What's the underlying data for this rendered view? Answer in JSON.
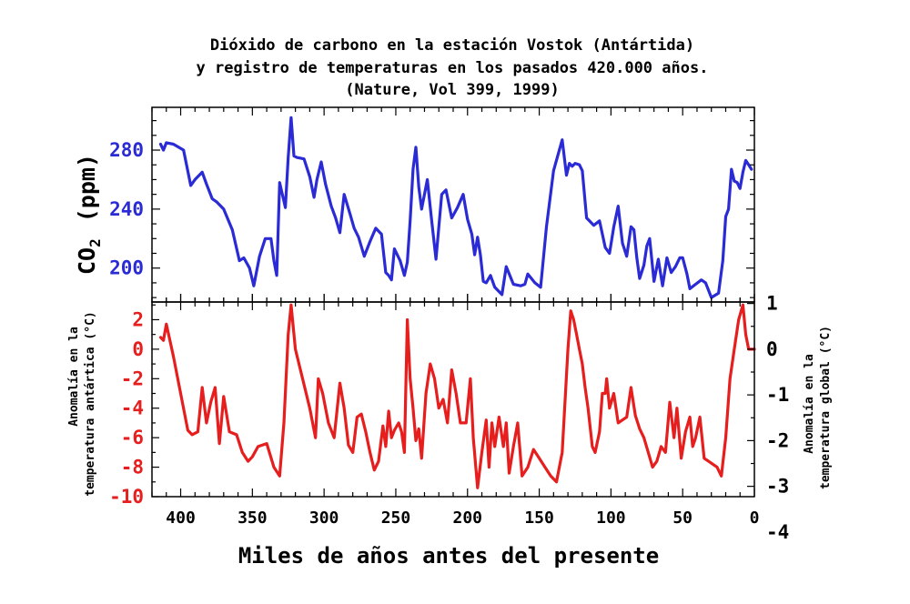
{
  "title_lines": [
    "Dióxido de carbono en la estación Vostok (Antártida)",
    "y registro de temperaturas en los pasados 420.000 años.",
    "(Nature, Vol 399, 1999)"
  ],
  "xlabel": "Miles de años antes del presente",
  "colors": {
    "co2": "#2b2bd6",
    "temp": "#e61e1e",
    "axes": "#000000"
  },
  "top_panel": {
    "ylabel_main": "CO",
    "ylabel_sub": "2",
    "ylabel_unit": "(ppm)"
  },
  "bottom_panel": {
    "ylabel_left_line1": "Anomalía en la",
    "ylabel_left_line2": "temperatura antártica (°C)",
    "ylabel_right_line1": "Anomalía en la",
    "ylabel_right_line2": "temperatura global (°C)"
  },
  "chart_data": [
    {
      "type": "line",
      "title": "Dióxido de carbono en la estación Vostok (Antártida) y registro de temperaturas en los pasados 420.000 años. (Nature, Vol 399, 1999)",
      "xlabel": "Miles de años antes del presente",
      "ylabel": "CO2 (ppm)",
      "xlim": [
        420,
        0
      ],
      "ylim": [
        177,
        309
      ],
      "x_ticks": [
        "400",
        "350",
        "300",
        "250",
        "200",
        "150",
        "100",
        "50",
        "0"
      ],
      "y_ticks": [
        "200",
        "240",
        "280"
      ],
      "grid": false,
      "series": [
        {
          "x": [
            414,
            412,
            410,
            405,
            398,
            393,
            390,
            385,
            382,
            378,
            375,
            370,
            364,
            359,
            356,
            352,
            349,
            345,
            341,
            337,
            335,
            333,
            331,
            327,
            325,
            323,
            321,
            319,
            314,
            310,
            307,
            305,
            302,
            299,
            295,
            292,
            289,
            286,
            282,
            279,
            276,
            272,
            268,
            264,
            260,
            257,
            255,
            253,
            251,
            247,
            244,
            242,
            240,
            238,
            236,
            234,
            232,
            228,
            225,
            222,
            218,
            215,
            211,
            207,
            203,
            200,
            197,
            195,
            193,
            191,
            189,
            187,
            184,
            181,
            176,
            173,
            168,
            163,
            160,
            158,
            153,
            149,
            145,
            140,
            134,
            131,
            129,
            127,
            125,
            122,
            120,
            117,
            115,
            112,
            108,
            104,
            101,
            98,
            95,
            92,
            89,
            86,
            84,
            82,
            80,
            77,
            75,
            73,
            70,
            67,
            64,
            61,
            58,
            55,
            52,
            50,
            47,
            45,
            41,
            37,
            34,
            30,
            25,
            22,
            20,
            18,
            16,
            14,
            12,
            10,
            8,
            6,
            4,
            2
          ],
          "values": [
            284,
            280,
            285,
            284,
            280,
            256,
            260,
            265,
            257,
            247,
            245,
            240,
            226,
            205,
            207,
            200,
            188,
            208,
            220,
            220,
            205,
            195,
            258,
            241,
            275,
            302,
            276,
            275,
            274,
            262,
            248,
            260,
            272,
            257,
            242,
            234,
            224,
            250,
            237,
            227,
            221,
            208,
            218,
            227,
            223,
            197,
            195,
            192,
            213,
            205,
            195,
            204,
            232,
            267,
            282,
            255,
            240,
            260,
            232,
            206,
            250,
            253,
            234,
            241,
            250,
            233,
            223,
            209,
            221,
            209,
            191,
            190,
            195,
            187,
            182,
            201,
            189,
            188,
            189,
            196,
            190,
            187,
            228,
            266,
            287,
            263,
            271,
            269,
            271,
            270,
            266,
            234,
            232,
            229,
            232,
            214,
            210,
            228,
            242,
            217,
            208,
            228,
            226,
            207,
            193,
            202,
            215,
            220,
            191,
            206,
            188,
            207,
            197,
            201,
            207,
            207,
            196,
            186,
            189,
            192,
            190,
            180,
            183,
            205,
            235,
            240,
            267,
            259,
            258,
            254,
            265,
            273,
            270,
            267
          ]
        }
      ]
    },
    {
      "type": "line",
      "xlabel": "Miles de años antes del presente",
      "ylabel": "Anomalía en la temperatura antártica (°C)",
      "ylabel_right": "Anomalía en la temperatura global (°C)",
      "xlim": [
        420,
        0
      ],
      "ylim": [
        -10,
        3.2
      ],
      "x_ticks": [
        "400",
        "350",
        "300",
        "250",
        "200",
        "150",
        "100",
        "50",
        "0"
      ],
      "y_ticks": [
        "2",
        "0",
        "-2",
        "-4",
        "-6",
        "-8",
        "-10"
      ],
      "y_ticks_right": [
        "1",
        "0",
        "-1",
        "-2",
        "-3",
        "-4"
      ],
      "grid": false,
      "series": [
        {
          "x": [
            414,
            412,
            410,
            405,
            400,
            395,
            392,
            388,
            385,
            382,
            379,
            376,
            373,
            370,
            366,
            361,
            357,
            353,
            350,
            346,
            340,
            335,
            331,
            328,
            325,
            323,
            320,
            315,
            310,
            306,
            304,
            301,
            297,
            293,
            289,
            286,
            283,
            280,
            277,
            274,
            271,
            268,
            265,
            262,
            259,
            257,
            255,
            253,
            251,
            248,
            246,
            244,
            242,
            240,
            238,
            236,
            234,
            232,
            229,
            226,
            223,
            220,
            217,
            214,
            211,
            208,
            205,
            203,
            201,
            198,
            196,
            193,
            190,
            187,
            185,
            183,
            181,
            178,
            175,
            173,
            171,
            168,
            165,
            162,
            158,
            154,
            150,
            146,
            142,
            138,
            134,
            130,
            128,
            126,
            124,
            122,
            120,
            118,
            116,
            113,
            111,
            108,
            106,
            104,
            103,
            101,
            98,
            95,
            92,
            89,
            86,
            83,
            80,
            77,
            74,
            71,
            68,
            65,
            62,
            59,
            56,
            54,
            51,
            48,
            45,
            43,
            41,
            38,
            35,
            32,
            29,
            26,
            23,
            20,
            17,
            14,
            11,
            8,
            6,
            4,
            2,
            0
          ],
          "values": [
            0.8,
            0.6,
            1.7,
            -0.5,
            -3.0,
            -5.5,
            -5.8,
            -5.6,
            -2.6,
            -5.0,
            -3.6,
            -2.6,
            -6.4,
            -3.2,
            -5.6,
            -5.8,
            -7.0,
            -7.6,
            -7.3,
            -6.6,
            -6.4,
            -8.0,
            -8.6,
            -5.0,
            1.0,
            3.0,
            0.0,
            -2.0,
            -4.0,
            -6.0,
            -2.0,
            -3.0,
            -5.0,
            -6.0,
            -2.3,
            -4.0,
            -6.5,
            -7.0,
            -4.6,
            -4.4,
            -5.6,
            -7.0,
            -8.2,
            -7.6,
            -5.2,
            -6.6,
            -4.2,
            -6.0,
            -5.5,
            -5.0,
            -5.6,
            -7.0,
            2.0,
            -2.0,
            -4.0,
            -6.2,
            -5.4,
            -7.4,
            -3.0,
            -1.0,
            -2.0,
            -4.0,
            -3.4,
            -5.0,
            -1.4,
            -3.0,
            -5.0,
            -5.0,
            -5.0,
            -2.0,
            -6.0,
            -9.4,
            -7.0,
            -4.8,
            -8.0,
            -5.0,
            -6.6,
            -4.6,
            -6.6,
            -5.0,
            -8.4,
            -6.6,
            -5.0,
            -8.6,
            -8.0,
            -6.8,
            -7.4,
            -8.0,
            -8.6,
            -9.0,
            -7.0,
            0.0,
            2.6,
            2.0,
            1.0,
            0.0,
            -1.0,
            -2.6,
            -4.0,
            -6.6,
            -7.0,
            -5.6,
            -3.0,
            -3.0,
            -2.0,
            -4.0,
            -3.0,
            -5.0,
            -4.8,
            -4.6,
            -2.6,
            -4.5,
            -5.4,
            -6.0,
            -7.0,
            -8.0,
            -7.6,
            -6.6,
            -7.0,
            -3.6,
            -6.0,
            -4.0,
            -7.4,
            -5.6,
            -4.6,
            -6.6,
            -6.0,
            -4.6,
            -7.4,
            -7.6,
            -7.8,
            -8.0,
            -8.6,
            -6.0,
            -2.0,
            0.0,
            2.0,
            3.0,
            1.0,
            0.0,
            0.0,
            0.0
          ]
        }
      ]
    }
  ]
}
